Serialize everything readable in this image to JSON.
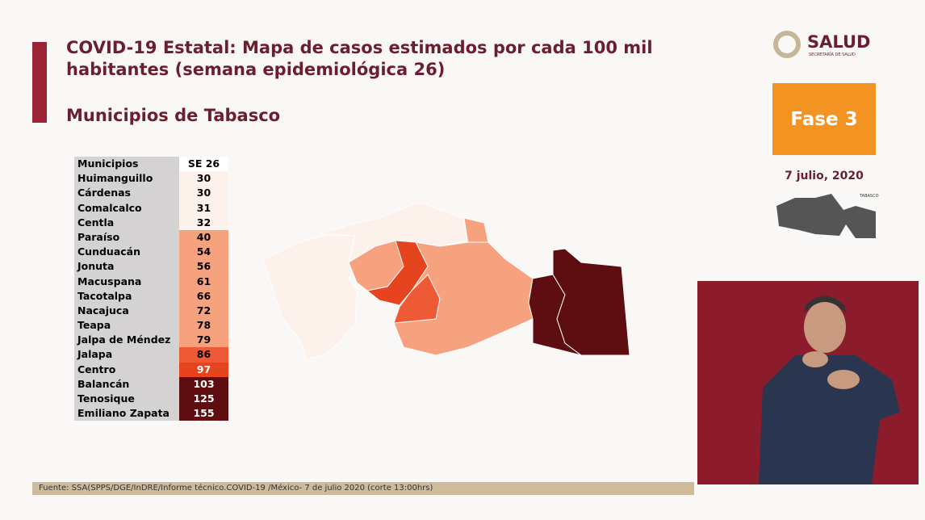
{
  "header": {
    "title": "COVID-19 Estatal: Mapa de casos estimados por cada 100 mil habitantes (semana epidemiológica 26)",
    "subtitle": "Municipios de Tabasco"
  },
  "logo": {
    "name": "SALUD",
    "tagline": "SECRETARÍA DE SALUD"
  },
  "phase": "Fase 3",
  "date": "7 julio, 2020",
  "state_map_label": "TABASCO",
  "table": {
    "columns": [
      "Municipios",
      "SE 26"
    ],
    "rows": [
      {
        "name": "Huimanguillo",
        "value": 30,
        "color": "#fdf1ec"
      },
      {
        "name": "Cárdenas",
        "value": 30,
        "color": "#fdf1ec"
      },
      {
        "name": "Comalcalco",
        "value": 31,
        "color": "#fdf1ec"
      },
      {
        "name": "Centla",
        "value": 32,
        "color": "#fdf1ec"
      },
      {
        "name": "Paraíso",
        "value": 40,
        "color": "#f6a27f"
      },
      {
        "name": "Cunduacán",
        "value": 54,
        "color": "#f6a27f"
      },
      {
        "name": "Jonuta",
        "value": 56,
        "color": "#f6a27f"
      },
      {
        "name": "Macuspana",
        "value": 61,
        "color": "#f6a27f"
      },
      {
        "name": "Tacotalpa",
        "value": 66,
        "color": "#f6a27f"
      },
      {
        "name": "Nacajuca",
        "value": 72,
        "color": "#f6a27f"
      },
      {
        "name": "Teapa",
        "value": 78,
        "color": "#f6a27f"
      },
      {
        "name": "Jalpa de Méndez",
        "value": 79,
        "color": "#f6a27f"
      },
      {
        "name": "Jalapa",
        "value": 86,
        "color": "#ef5a36"
      },
      {
        "name": "Centro",
        "value": 97,
        "color": "#e6431f"
      },
      {
        "name": "Balancán",
        "value": 103,
        "color": "#5e0d10"
      },
      {
        "name": "Tenosique",
        "value": 125,
        "color": "#5e0d10"
      },
      {
        "name": "Emiliano Zapata",
        "value": 155,
        "color": "#5e0d10"
      }
    ]
  },
  "footer": "Fuente: SSA(SPPS/DGE/InDRE/Informe técnico.COVID-19 /México- 7 de julio 2020 (corte 13:00hrs)"
}
